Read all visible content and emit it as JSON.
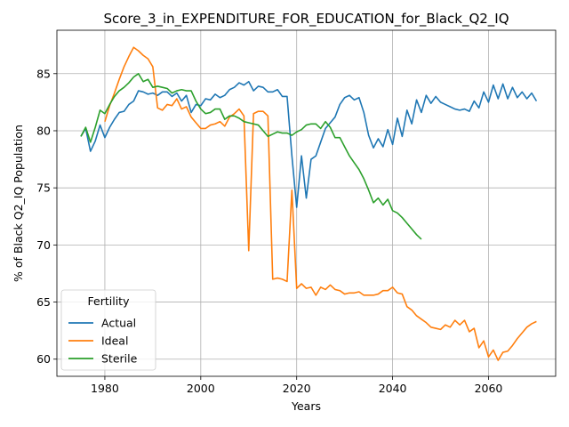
{
  "chart_data": {
    "type": "line",
    "title": "Score_3_in_EXPENDITURE_FOR_EDUCATION_for_Black_Q2_IQ",
    "xlabel": "Years",
    "ylabel": "% of Black Q2_IQ Population",
    "xlim": [
      1970,
      2074
    ],
    "ylim": [
      58.5,
      88.8
    ],
    "xticks": [
      1980,
      2000,
      2020,
      2040,
      2060
    ],
    "yticks": [
      60,
      65,
      70,
      75,
      80,
      85
    ],
    "grid": true,
    "legend": {
      "title": "Fertility",
      "placement": "lower-left"
    },
    "series": [
      {
        "name": "Actual",
        "color": "#1f77b4",
        "x": [
          1975,
          1976,
          1977,
          1978,
          1979,
          1980,
          1981,
          1982,
          1983,
          1984,
          1985,
          1986,
          1987,
          1988,
          1989,
          1990,
          1991,
          1992,
          1993,
          1994,
          1995,
          1996,
          1997,
          1998,
          1999,
          2000,
          2001,
          2002,
          2003,
          2004,
          2005,
          2006,
          2007,
          2008,
          2009,
          2010,
          2011,
          2012,
          2013,
          2014,
          2015,
          2016,
          2017,
          2018,
          2019,
          2020,
          2021,
          2022,
          2023,
          2024,
          2025,
          2026,
          2027,
          2028,
          2029,
          2030,
          2031,
          2032,
          2033,
          2034,
          2035,
          2036,
          2037,
          2038,
          2039,
          2040,
          2041,
          2042,
          2043,
          2044,
          2045,
          2046,
          2047,
          2048,
          2049,
          2050,
          2051,
          2052,
          2053,
          2054,
          2055,
          2056,
          2057,
          2058,
          2059,
          2060,
          2061,
          2062,
          2063,
          2064,
          2065,
          2066,
          2067,
          2068,
          2069,
          2070
        ],
        "y": [
          79.5,
          80.2,
          78.2,
          79.1,
          80.5,
          79.4,
          80.3,
          81.0,
          81.6,
          81.7,
          82.3,
          82.6,
          83.5,
          83.4,
          83.2,
          83.3,
          83.1,
          83.4,
          83.4,
          83.0,
          83.3,
          82.6,
          83.1,
          81.6,
          82.3,
          82.2,
          82.8,
          82.7,
          83.2,
          82.9,
          83.1,
          83.6,
          83.8,
          84.2,
          84.0,
          84.3,
          83.5,
          83.9,
          83.8,
          83.4,
          83.4,
          83.6,
          83.0,
          83.0,
          77.8,
          73.3,
          77.8,
          74.1,
          77.5,
          77.8,
          79.0,
          80.2,
          80.7,
          81.2,
          82.3,
          82.9,
          83.1,
          82.7,
          82.9,
          81.6,
          79.6,
          78.5,
          79.3,
          78.6,
          80.1,
          78.8,
          81.1,
          79.5,
          81.8,
          80.6,
          82.7,
          81.6,
          83.1,
          82.4,
          83.0,
          82.5,
          82.3,
          82.1,
          81.9,
          81.8,
          81.9,
          81.7,
          82.6,
          82.0,
          83.4,
          82.5,
          84.0,
          82.8,
          84.1,
          82.8,
          83.8,
          82.9,
          83.4,
          82.8,
          83.3,
          82.6
        ]
      },
      {
        "name": "Ideal",
        "color": "#ff7f0e",
        "x": [
          1980,
          1981,
          1982,
          1983,
          1984,
          1985,
          1986,
          1987,
          1988,
          1989,
          1990,
          1991,
          1992,
          1993,
          1994,
          1995,
          1996,
          1997,
          1998,
          1999,
          2000,
          2001,
          2002,
          2003,
          2004,
          2005,
          2006,
          2007,
          2008,
          2009,
          2010,
          2011,
          2012,
          2013,
          2014,
          2015,
          2016,
          2017,
          2018,
          2019,
          2020,
          2021,
          2022,
          2023,
          2024,
          2025,
          2026,
          2027,
          2028,
          2029,
          2030,
          2031,
          2032,
          2033,
          2034,
          2035,
          2036,
          2037,
          2038,
          2039,
          2040,
          2041,
          2042,
          2043,
          2044,
          2045,
          2046,
          2047,
          2048,
          2049,
          2050,
          2051,
          2052,
          2053,
          2054,
          2055,
          2056,
          2057,
          2058,
          2059,
          2060,
          2061,
          2062,
          2063,
          2064,
          2065,
          2066,
          2067,
          2068,
          2069,
          2070
        ],
        "y": [
          80.8,
          82.2,
          83.3,
          84.5,
          85.6,
          86.5,
          87.3,
          87.0,
          86.6,
          86.3,
          85.6,
          82.0,
          81.8,
          82.3,
          82.2,
          82.8,
          81.9,
          82.1,
          81.2,
          80.7,
          80.2,
          80.2,
          80.5,
          80.6,
          80.8,
          80.4,
          81.2,
          81.5,
          81.9,
          81.3,
          69.5,
          81.5,
          81.7,
          81.7,
          81.3,
          67.0,
          67.1,
          67.0,
          66.8,
          74.8,
          66.2,
          66.6,
          66.2,
          66.3,
          65.6,
          66.3,
          66.1,
          66.5,
          66.1,
          66.0,
          65.7,
          65.8,
          65.8,
          65.9,
          65.6,
          65.6,
          65.6,
          65.7,
          66.0,
          66.0,
          66.3,
          65.8,
          65.7,
          64.6,
          64.3,
          63.8,
          63.5,
          63.2,
          62.8,
          62.7,
          62.6,
          63.0,
          62.8,
          63.4,
          63.0,
          63.4,
          62.4,
          62.7,
          61.0,
          61.6,
          60.2,
          60.8,
          59.9,
          60.6,
          60.7,
          61.2,
          61.8,
          62.3,
          62.8,
          63.1,
          63.3
        ]
      },
      {
        "name": "Sterile",
        "color": "#2ca02c",
        "x": [
          1975,
          1976,
          1977,
          1978,
          1979,
          1980,
          1981,
          1982,
          1983,
          1984,
          1985,
          1986,
          1987,
          1988,
          1989,
          1990,
          1991,
          1992,
          1993,
          1994,
          1995,
          1996,
          1997,
          1998,
          1999,
          2000,
          2001,
          2002,
          2003,
          2004,
          2005,
          2006,
          2007,
          2008,
          2009,
          2010,
          2011,
          2012,
          2013,
          2014,
          2015,
          2016,
          2017,
          2018,
          2019,
          2020,
          2021,
          2022,
          2023,
          2024,
          2025,
          2026,
          2027,
          2028,
          2029,
          2030,
          2031,
          2032,
          2033,
          2034,
          2035,
          2036,
          2037,
          2038,
          2039,
          2040,
          2041,
          2042,
          2043,
          2044,
          2045,
          2046
        ],
        "y": [
          79.5,
          80.3,
          79.0,
          80.3,
          81.8,
          81.5,
          82.3,
          83.0,
          83.5,
          83.8,
          84.2,
          84.7,
          85.0,
          84.3,
          84.5,
          83.8,
          83.9,
          83.8,
          83.7,
          83.3,
          83.5,
          83.6,
          83.5,
          83.5,
          82.6,
          81.9,
          81.5,
          81.6,
          81.9,
          81.9,
          81.0,
          81.3,
          81.3,
          81.1,
          80.8,
          80.7,
          80.6,
          80.5,
          80.0,
          79.5,
          79.7,
          79.9,
          79.8,
          79.8,
          79.6,
          79.9,
          80.1,
          80.5,
          80.6,
          80.6,
          80.2,
          80.8,
          80.3,
          79.4,
          79.4,
          78.6,
          77.8,
          77.2,
          76.6,
          75.8,
          74.8,
          73.7,
          74.1,
          73.5,
          74.0,
          73.0,
          72.8,
          72.4,
          71.9,
          71.4,
          70.9,
          70.5
        ]
      }
    ]
  }
}
